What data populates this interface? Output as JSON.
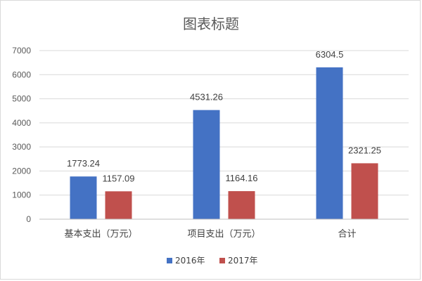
{
  "chart_data": {
    "type": "bar",
    "title": "图表标题",
    "categories": [
      "基本支出（万元）",
      "项目支出（万元）",
      "合计"
    ],
    "series": [
      {
        "name": "2016年",
        "color": "#4472c4",
        "values": [
          1773.24,
          4531.26,
          6304.5
        ]
      },
      {
        "name": "2017年",
        "color": "#c0504d",
        "values": [
          1157.09,
          1164.16,
          2321.25
        ]
      }
    ],
    "ylim": [
      0,
      7000
    ],
    "yticks": [
      0,
      1000,
      2000,
      3000,
      4000,
      5000,
      6000,
      7000
    ],
    "grid": true,
    "legend_position": "bottom"
  }
}
